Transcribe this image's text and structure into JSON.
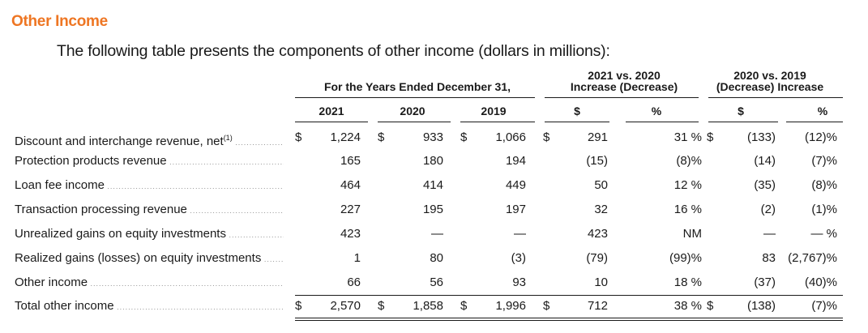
{
  "section_title": "Other Income",
  "intro": "The following table presents the components of other income (dollars in millions):",
  "headers": {
    "years_group": "For the Years Ended December 31,",
    "cmp1_line1": "2021 vs. 2020",
    "cmp1_line2": "Increase (Decrease)",
    "cmp2_line1": "2020 vs. 2019",
    "cmp2_line2": "(Decrease) Increase",
    "y2021": "2021",
    "y2020": "2020",
    "y2019": "2019",
    "dollar1": "$",
    "pct1": "%",
    "dollar2": "$",
    "pct2": "%"
  },
  "rows": [
    {
      "label": "Discount and interchange revenue, net",
      "footnote": "(1)",
      "v2021": "1,224",
      "v2020": "933",
      "v2019": "1,066",
      "d1": "291",
      "p1": "31 %",
      "d2": "(133)",
      "p2": "(12)%",
      "s2021": "$",
      "s2020": "$",
      "s2019": "$",
      "sd1": "$",
      "sd2": "$"
    },
    {
      "label": "Protection products revenue",
      "v2021": "165",
      "v2020": "180",
      "v2019": "194",
      "d1": "(15)",
      "p1": "(8)%",
      "d2": "(14)",
      "p2": "(7)%"
    },
    {
      "label": "Loan fee income",
      "v2021": "464",
      "v2020": "414",
      "v2019": "449",
      "d1": "50",
      "p1": "12 %",
      "d2": "(35)",
      "p2": "(8)%"
    },
    {
      "label": "Transaction processing revenue",
      "v2021": "227",
      "v2020": "195",
      "v2019": "197",
      "d1": "32",
      "p1": "16 %",
      "d2": "(2)",
      "p2": "(1)%"
    },
    {
      "label": "Unrealized gains on equity investments",
      "v2021": "423",
      "v2020": "—",
      "v2019": "—",
      "d1": "423",
      "p1": "NM",
      "d2": "—",
      "p2": "— %"
    },
    {
      "label": "Realized gains (losses) on equity investments",
      "v2021": "1",
      "v2020": "80",
      "v2019": "(3)",
      "d1": "(79)",
      "p1": "(99)%",
      "d2": "83",
      "p2": "(2,767)%"
    },
    {
      "label": "Other income",
      "v2021": "66",
      "v2020": "56",
      "v2019": "93",
      "d1": "10",
      "p1": "18 %",
      "d2": "(37)",
      "p2": "(40)%"
    },
    {
      "label": "Total other income",
      "v2021": "2,570",
      "v2020": "1,858",
      "v2019": "1,996",
      "d1": "712",
      "p1": "38 %",
      "d2": "(138)",
      "p2": "(7)%",
      "s2021": "$",
      "s2020": "$",
      "s2019": "$",
      "sd1": "$",
      "sd2": "$"
    }
  ]
}
